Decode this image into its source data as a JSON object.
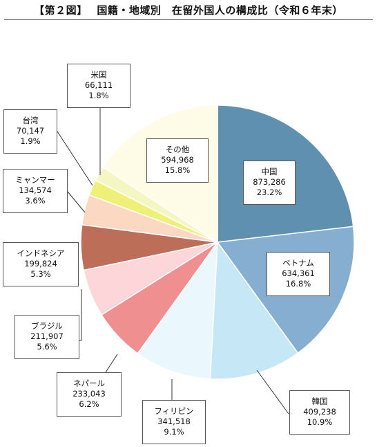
{
  "title": "【第２図】　 国籍・地域別　在留外国人の構成比（令和６年末）",
  "chart_data": {
    "type": "pie",
    "start": "12 o'clock, clockwise",
    "slices": [
      {
        "name": "中国",
        "value": "873,286",
        "percent": "23.2%",
        "color": "#5f90b0"
      },
      {
        "name": "ベトナム",
        "value": "634,361",
        "percent": "16.8%",
        "color": "#86aed0"
      },
      {
        "name": "韓国",
        "value": "409,238",
        "percent": "10.9%",
        "color": "#c6e8f6"
      },
      {
        "name": "フィリピン",
        "value": "341,518",
        "percent": "9.1%",
        "color": "#eaf8fd"
      },
      {
        "name": "ネパール",
        "value": "233,043",
        "percent": "6.2%",
        "color": "#f08f90"
      },
      {
        "name": "ブラジル",
        "value": "211,907",
        "percent": "5.6%",
        "color": "#fcd6d9"
      },
      {
        "name": "インドネシア",
        "value": "199,824",
        "percent": "5.3%",
        "color": "#bd6e58"
      },
      {
        "name": "ミャンマー",
        "value": "134,574",
        "percent": "3.6%",
        "color": "#fad8c2"
      },
      {
        "name": "台湾",
        "value": "70,147",
        "percent": "1.9%",
        "color": "#eef078"
      },
      {
        "name": "米国",
        "value": "66,111",
        "percent": "1.8%",
        "color": "#f4f6c4"
      },
      {
        "name": "その他",
        "value": "594,968",
        "percent": "15.8%",
        "color": "#fefbe6"
      }
    ]
  }
}
